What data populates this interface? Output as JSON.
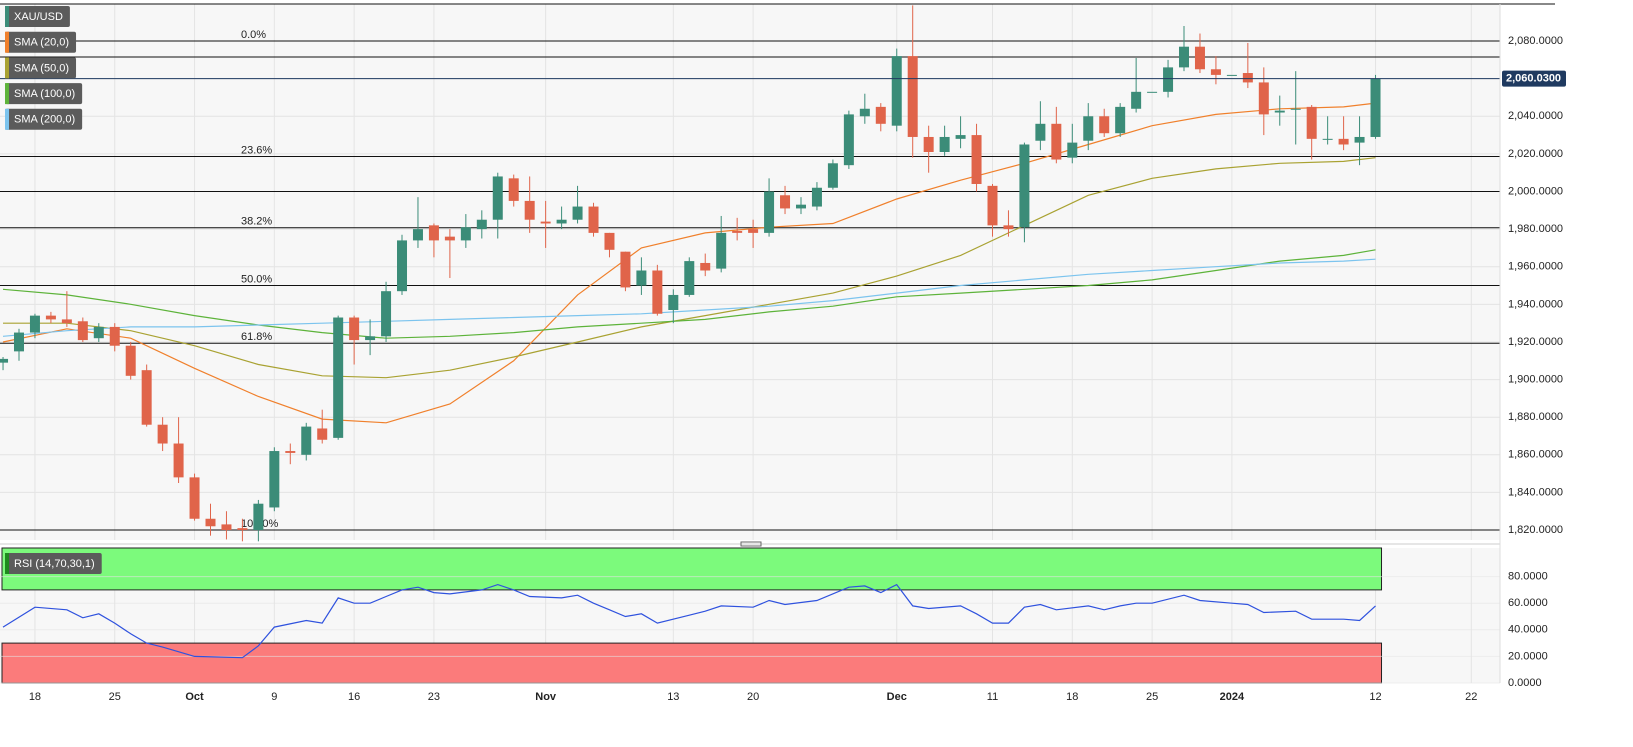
{
  "chart_data": [
    {
      "type": "candlestick",
      "xlim": [
        -0.19,
        93.8
      ],
      "ylim": [
        1814.7,
        2099.7
      ],
      "yticks": [
        {
          "value": 1820,
          "label": "1,820.0000"
        },
        {
          "value": 1840,
          "label": "1,840.0000"
        },
        {
          "value": 1860,
          "label": "1,860.0000"
        },
        {
          "value": 1880,
          "label": "1,880.0000"
        },
        {
          "value": 1900,
          "label": "1,900.0000"
        },
        {
          "value": 1920,
          "label": "1,920.0000"
        },
        {
          "value": 1940,
          "label": "1,940.0000"
        },
        {
          "value": 1960,
          "label": "1,960.0000"
        },
        {
          "value": 1980,
          "label": "1,980.0000"
        },
        {
          "value": 2000,
          "label": "2,000.0000"
        },
        {
          "value": 2020,
          "label": "2,020.0000"
        },
        {
          "value": 2040,
          "label": "2,040.0000"
        },
        {
          "value": 2060,
          "label": "2,060.0000"
        },
        {
          "value": 2080,
          "label": "2,080.0000"
        }
      ],
      "grid": true,
      "series": [
        {
          "name": "XAU/USD",
          "up_color": "#3b8c78",
          "down_color": "#e0644a",
          "last_label": "2,060.0300",
          "last_color": "#1f3a60",
          "open": [
            1909,
            1915,
            1925,
            1934,
            1932,
            1931,
            1922,
            1928,
            1918,
            1905,
            1876,
            1866,
            1848,
            1826,
            1823,
            1821,
            1820,
            1832,
            1862,
            1860,
            1874,
            1869,
            1933,
            1921,
            1923,
            1947,
            1974,
            1982,
            1976,
            1974,
            1980,
            1985,
            2007,
            1995,
            1984,
            1983,
            1985,
            1992,
            1978,
            1968,
            1950,
            1958,
            1937,
            1945,
            1962,
            1959,
            1979,
            1980,
            1978,
            1998,
            1991,
            1992,
            2002,
            2014,
            2040,
            2045,
            2035,
            2072,
            2029,
            2021,
            2028,
            2030,
            2003,
            1982,
            1981,
            2027,
            2036,
            2018,
            2027,
            2040,
            2031,
            2044,
            2053,
            2053,
            2066,
            2077,
            2065,
            2062,
            2063,
            2058,
            2042,
            2044,
            2045,
            2028,
            2028,
            2026,
            2029
          ],
          "high": [
            1912,
            1927,
            1935,
            1936,
            1947,
            1933,
            1930,
            1930,
            1920,
            1908,
            1880,
            1880,
            1850,
            1834,
            1830,
            1826,
            1836,
            1864,
            1866,
            1877,
            1884,
            1934,
            1934,
            1932,
            1952,
            1977,
            1997,
            1983,
            1980,
            1988,
            1990,
            2010,
            2009,
            2008,
            1995,
            1992,
            2003,
            1994,
            1978,
            1968,
            1965,
            1961,
            1948,
            1965,
            1967,
            1987,
            1986,
            1985,
            2007,
            2003,
            1997,
            2005,
            2017,
            2043,
            2052,
            2047,
            2076,
            2099,
            2035,
            2035,
            2040,
            2036,
            2004,
            1990,
            2026,
            2048,
            2045,
            2036,
            2047,
            2044,
            2047,
            2071,
            2053,
            2070,
            2088,
            2084,
            2072,
            2062,
            2079,
            2066,
            2051,
            2064,
            2046,
            2040,
            2040,
            2040,
            2062
          ],
          "low": [
            1905,
            1910,
            1922,
            1930,
            1928,
            1920,
            1920,
            1915,
            1900,
            1875,
            1862,
            1845,
            1825,
            1817,
            1815,
            1814,
            1814,
            1830,
            1855,
            1857,
            1866,
            1868,
            1908,
            1913,
            1920,
            1945,
            1970,
            1965,
            1954,
            1970,
            1975,
            1975,
            1992,
            1978,
            1970,
            1980,
            1983,
            1976,
            1965,
            1947,
            1945,
            1934,
            1930,
            1944,
            1955,
            1957,
            1974,
            1970,
            1976,
            1988,
            1988,
            1990,
            2001,
            2012,
            2036,
            2032,
            2032,
            2018,
            2010,
            2019,
            2023,
            2000,
            1976,
            1976,
            1973,
            2022,
            2015,
            2015,
            2022,
            2029,
            2029,
            2042,
            2053,
            2050,
            2064,
            2063,
            2057,
            2062,
            2055,
            2030,
            2035,
            2025,
            2017,
            2025,
            2022,
            2014,
            2028
          ],
          "close": [
            1911,
            1925,
            1934,
            1932,
            1930,
            1921,
            1928,
            1918,
            1902,
            1876,
            1866,
            1848,
            1826,
            1822,
            1820,
            1820,
            1834,
            1862,
            1861,
            1875,
            1868,
            1933,
            1921,
            1923,
            1947,
            1974,
            1980,
            1974,
            1974,
            1981,
            1985,
            2008,
            1995,
            1985,
            1983,
            1985,
            1992,
            1978,
            1969,
            1949,
            1958,
            1935,
            1945,
            1963,
            1958,
            1978,
            1978,
            1978,
            2000,
            1991,
            1993,
            2002,
            2015,
            2041,
            2044,
            2036,
            2072,
            2029,
            2021,
            2029,
            2030,
            2004,
            1982,
            1980,
            2025,
            2036,
            2017,
            2026,
            2040,
            2031,
            2045,
            2053,
            2053,
            2066,
            2077,
            2065,
            2062,
            2062,
            2058,
            2041,
            2043,
            2044,
            2028,
            2028,
            2025,
            2029,
            2060.03
          ]
        }
      ],
      "overlays": [
        {
          "name": "SMA (20,0)",
          "color": "#f0802c",
          "x": [
            0,
            4,
            8,
            12,
            16,
            20,
            24,
            28,
            32,
            36,
            40,
            44,
            48,
            52,
            56,
            60,
            64,
            68,
            72,
            76,
            80,
            84,
            86
          ],
          "values": [
            1920,
            1927,
            1922,
            1906,
            1891,
            1879,
            1877,
            1887,
            1910,
            1945,
            1970,
            1978,
            1981,
            1983,
            1996,
            2006,
            2015,
            2025,
            2035,
            2041,
            2044,
            2045,
            2047
          ]
        },
        {
          "name": "SMA (50,0)",
          "color": "#a9a232",
          "x": [
            0,
            4,
            8,
            12,
            16,
            20,
            24,
            28,
            32,
            36,
            40,
            44,
            48,
            52,
            56,
            60,
            64,
            68,
            72,
            76,
            80,
            84,
            86
          ],
          "values": [
            1930,
            1930,
            1926,
            1918,
            1908,
            1902,
            1901,
            1905,
            1912,
            1920,
            1928,
            1934,
            1940,
            1946,
            1955,
            1966,
            1982,
            1998,
            2007,
            2012,
            2015,
            2016,
            2018
          ]
        },
        {
          "name": "SMA (100,0)",
          "color": "#5db33a",
          "x": [
            0,
            4,
            8,
            12,
            16,
            20,
            24,
            28,
            32,
            36,
            40,
            44,
            48,
            52,
            56,
            60,
            64,
            68,
            72,
            76,
            80,
            84,
            86
          ],
          "values": [
            1948,
            1945,
            1940,
            1934,
            1929,
            1925,
            1922,
            1923,
            1925,
            1928,
            1930,
            1932,
            1936,
            1939,
            1944,
            1946,
            1948,
            1950,
            1953,
            1958,
            1963,
            1966,
            1969
          ]
        },
        {
          "name": "SMA (200,0)",
          "color": "#7cc4ee",
          "x": [
            0,
            4,
            8,
            12,
            16,
            20,
            24,
            28,
            32,
            36,
            40,
            44,
            48,
            52,
            56,
            60,
            64,
            68,
            72,
            76,
            80,
            84,
            86
          ],
          "values": [
            1923,
            1926,
            1928,
            1928,
            1929,
            1930,
            1931,
            1932,
            1933,
            1934,
            1935,
            1937,
            1939,
            1942,
            1946,
            1950,
            1953,
            1956,
            1958,
            1960,
            1962,
            1963,
            1964
          ]
        }
      ],
      "fib_levels": [
        {
          "value": 2080,
          "label": "0.0%"
        },
        {
          "value": 2018.6,
          "label": "23.6%"
        },
        {
          "value": 1980.7,
          "label": "38.2%"
        },
        {
          "value": 1950,
          "label": "50.0%"
        },
        {
          "value": 1919.3,
          "label": "61.8%"
        },
        {
          "value": 1820,
          "label": "100.0%"
        }
      ],
      "levels": [
        2071.5,
        2000
      ]
    },
    {
      "type": "line",
      "xlim": [
        -0.19,
        93.8
      ],
      "ylim": [
        0,
        101.5
      ],
      "yticks": [
        {
          "value": 0,
          "label": "0.0000"
        },
        {
          "value": 20,
          "label": "20.0000"
        },
        {
          "value": 40,
          "label": "40.0000"
        },
        {
          "value": 60,
          "label": "60.0000"
        },
        {
          "value": 80,
          "label": "80.0000"
        }
      ],
      "xticks": [
        {
          "value": 2,
          "label": "18"
        },
        {
          "value": 7,
          "label": "25"
        },
        {
          "value": 12,
          "label": "Oct"
        },
        {
          "value": 17,
          "label": "9"
        },
        {
          "value": 22,
          "label": "16"
        },
        {
          "value": 27,
          "label": "23"
        },
        {
          "value": 34,
          "label": "Nov"
        },
        {
          "value": 42,
          "label": "13"
        },
        {
          "value": 47,
          "label": "20"
        },
        {
          "value": 56,
          "label": "Dec"
        },
        {
          "value": 62,
          "label": "11"
        },
        {
          "value": 67,
          "label": "18"
        },
        {
          "value": 72,
          "label": "25"
        },
        {
          "value": 77,
          "label": "2024"
        },
        {
          "value": 86,
          "label": "12"
        },
        {
          "value": 92,
          "label": "22"
        }
      ],
      "bands": [
        {
          "from": 70,
          "to": 101.5,
          "color": "#7cfa7c"
        },
        {
          "from": 0,
          "to": 30,
          "color": "#fb7b7b"
        }
      ],
      "series": [
        {
          "name": "RSI (14,70,30,1)",
          "color": "#2f52de",
          "x": [
            0,
            2,
            4,
            5,
            6,
            7,
            8,
            9,
            10,
            12,
            15,
            16,
            17,
            19,
            20,
            21,
            22,
            23,
            24,
            25,
            26,
            27,
            28,
            30,
            31,
            32,
            33,
            35,
            36,
            37,
            38,
            39,
            40,
            41,
            43,
            44,
            45,
            47,
            48,
            49,
            51,
            53,
            54,
            55,
            56,
            57,
            58,
            60,
            61,
            62,
            63,
            64,
            65,
            66,
            68,
            69,
            70,
            71,
            72,
            74,
            75,
            77,
            78,
            79,
            81,
            82,
            84,
            85,
            86
          ],
          "values": [
            42,
            57,
            55,
            49,
            52,
            45,
            37,
            30,
            27,
            20,
            19,
            28,
            42,
            47,
            45,
            64,
            60,
            60,
            65,
            70,
            72,
            68,
            67,
            70,
            74,
            70,
            65,
            64,
            66,
            60,
            55,
            50,
            52,
            45,
            51,
            54,
            58,
            57,
            62,
            59,
            62,
            72,
            73,
            68,
            74,
            58,
            56,
            58,
            52,
            45,
            45,
            57,
            59,
            55,
            58,
            55,
            58,
            60,
            60,
            66,
            62,
            60,
            59,
            53,
            54,
            48,
            48,
            47,
            58
          ]
        }
      ]
    }
  ]
}
